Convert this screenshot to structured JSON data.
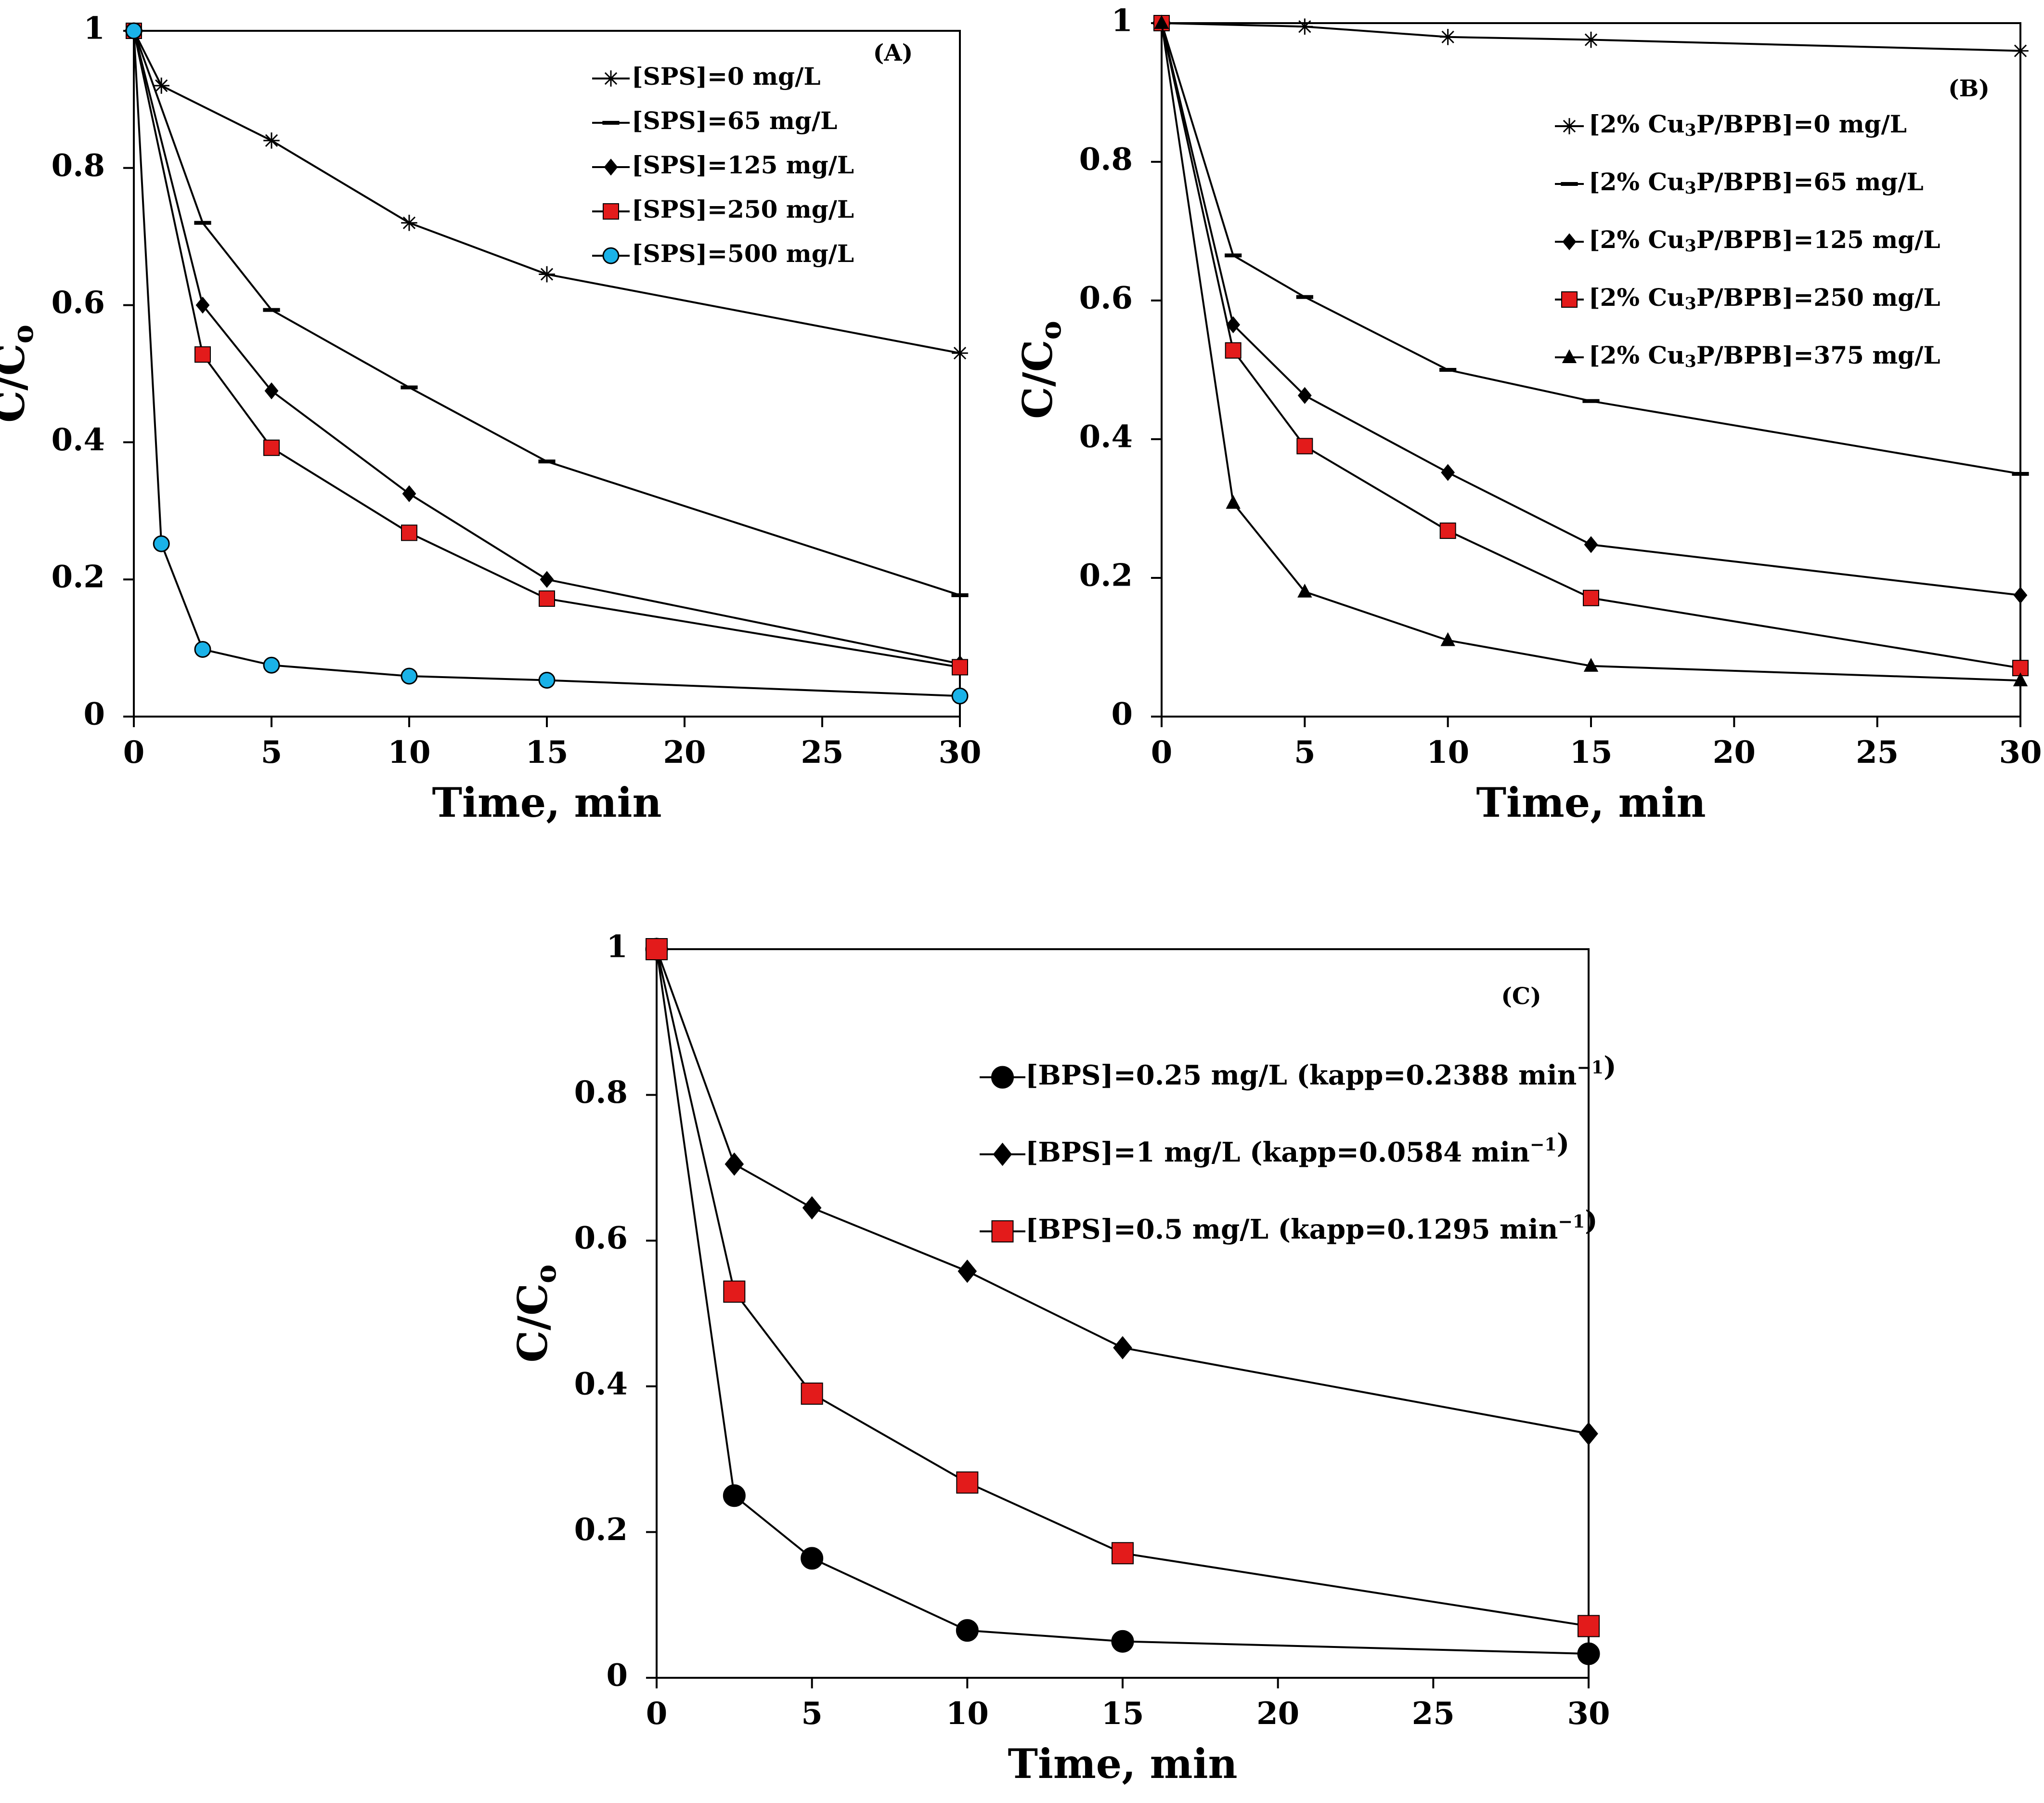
{
  "chart_data": [
    {
      "id": "A",
      "type": "line",
      "panel_label": "(A)",
      "xlabel": "Time, min",
      "ylabel": "C/C",
      "ylabel_sub": "o",
      "xlim": [
        0,
        30
      ],
      "ylim": [
        0,
        1
      ],
      "xticks": [
        "0",
        "5",
        "10",
        "15",
        "20",
        "25",
        "30"
      ],
      "yticks": [
        "0",
        "0.2",
        "0.4",
        "0.6",
        "0.8",
        "1"
      ],
      "legend_position": "top-right",
      "series": [
        {
          "name": "[SPS]=0 mg/L",
          "marker": "asterisk",
          "color": "#000000",
          "x": [
            0,
            1,
            5,
            10,
            15,
            30
          ],
          "y": [
            1,
            0.92,
            0.84,
            0.72,
            0.645,
            0.53
          ]
        },
        {
          "name": "[SPS]=65 mg/L",
          "marker": "dash",
          "color": "#000000",
          "x": [
            0,
            2.5,
            5,
            10,
            15,
            30
          ],
          "y": [
            1,
            0.72,
            0.593,
            0.48,
            0.372,
            0.177
          ]
        },
        {
          "name": "[SPS]=125 mg/L",
          "marker": "diamond",
          "color": "#000000",
          "x": [
            0,
            2.5,
            5,
            10,
            15,
            30
          ],
          "y": [
            1,
            0.6,
            0.475,
            0.325,
            0.2,
            0.077
          ]
        },
        {
          "name": "[SPS]=250 mg/L",
          "marker": "square",
          "color": "#e31b1b",
          "x": [
            0,
            2.5,
            5,
            10,
            15,
            30
          ],
          "y": [
            1,
            0.528,
            0.392,
            0.268,
            0.172,
            0.072
          ]
        },
        {
          "name": "[SPS]=500 mg/L",
          "marker": "circle",
          "color": "#1ab2e8",
          "x": [
            0,
            1,
            2.5,
            5,
            10,
            15,
            30
          ],
          "y": [
            1,
            0.252,
            0.098,
            0.075,
            0.059,
            0.053,
            0.03
          ]
        }
      ]
    },
    {
      "id": "B",
      "type": "line",
      "panel_label": "(B)",
      "xlabel": "Time, min",
      "ylabel": "C/C",
      "ylabel_sub": "o",
      "xlim": [
        0,
        30
      ],
      "ylim": [
        0,
        1
      ],
      "xticks": [
        "0",
        "5",
        "10",
        "15",
        "20",
        "25",
        "30"
      ],
      "yticks": [
        "0",
        "0.2",
        "0.4",
        "0.6",
        "0.8",
        "1"
      ],
      "legend_position": "top-right",
      "series": [
        {
          "name": "[2% Cu3P/BPB]=0 mg/L",
          "marker": "asterisk",
          "color": "#000000",
          "x": [
            0,
            5,
            10,
            15,
            30
          ],
          "y": [
            1,
            0.995,
            0.98,
            0.976,
            0.96
          ]
        },
        {
          "name": "[2% Cu3P/BPB]=65 mg/L",
          "marker": "dash",
          "color": "#000000",
          "x": [
            0,
            2.5,
            5,
            10,
            15,
            30
          ],
          "y": [
            1,
            0.665,
            0.605,
            0.5,
            0.455,
            0.35
          ]
        },
        {
          "name": "[2% Cu3P/BPB]=125 mg/L",
          "marker": "diamond",
          "color": "#000000",
          "x": [
            0,
            2.5,
            5,
            10,
            15,
            30
          ],
          "y": [
            1,
            0.565,
            0.463,
            0.352,
            0.248,
            0.175
          ]
        },
        {
          "name": "[2% Cu3P/BPB]=250 mg/L",
          "marker": "square",
          "color": "#e31b1b",
          "x": [
            0,
            2.5,
            5,
            10,
            15,
            30
          ],
          "y": [
            1,
            0.528,
            0.39,
            0.268,
            0.171,
            0.07
          ]
        },
        {
          "name": "[2% Cu3P/BPB]=375 mg/L",
          "marker": "triangle",
          "color": "#000000",
          "x": [
            0,
            2.5,
            5,
            10,
            15,
            30
          ],
          "y": [
            1,
            0.308,
            0.18,
            0.11,
            0.073,
            0.052
          ]
        }
      ]
    },
    {
      "id": "C",
      "type": "line",
      "panel_label": "(C)",
      "xlabel": "Time, min",
      "ylabel": "C/C",
      "ylabel_sub": "o",
      "xlim": [
        0,
        30
      ],
      "ylim": [
        0,
        1
      ],
      "xticks": [
        "0",
        "5",
        "10",
        "15",
        "20",
        "25",
        "30"
      ],
      "yticks": [
        "0",
        "0.2",
        "0.4",
        "0.6",
        "0.8",
        "1"
      ],
      "legend_position": "top-right",
      "series": [
        {
          "name": "[BPS]=0.25 mg/L (kapp=0.2388 min-1)",
          "marker": "circle",
          "color": "#000000",
          "x": [
            0,
            2.5,
            5,
            10,
            15,
            30
          ],
          "y": [
            1,
            0.25,
            0.164,
            0.065,
            0.05,
            0.033
          ]
        },
        {
          "name": "[BPS]=1 mg/L (kapp=0.0584 min-1)",
          "marker": "diamond",
          "color": "#000000",
          "x": [
            0,
            2.5,
            5,
            10,
            15,
            30
          ],
          "y": [
            1,
            0.705,
            0.645,
            0.558,
            0.453,
            0.335
          ]
        },
        {
          "name": "[BPS]=0.5 mg/L (kapp=0.1295 min-1)",
          "marker": "square",
          "color": "#e31b1b",
          "x": [
            0,
            2.5,
            5,
            10,
            15,
            30
          ],
          "y": [
            1,
            0.53,
            0.39,
            0.268,
            0.171,
            0.071
          ]
        }
      ]
    }
  ]
}
